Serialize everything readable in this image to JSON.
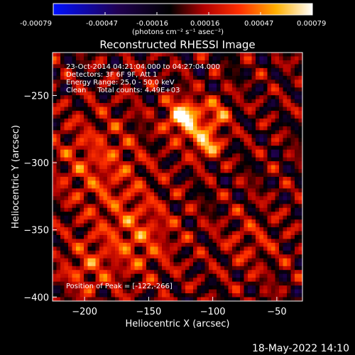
{
  "colorbar": {
    "ticks": [
      "-0.00079",
      "-0.00047",
      "-0.00016",
      "0.00016",
      "0.00047",
      "0.00079"
    ],
    "unit_label": "(photons cm⁻² s⁻¹ asec⁻²)",
    "range": [
      -0.00079,
      0.00079
    ]
  },
  "chart_data": {
    "type": "heatmap",
    "title": "Reconstructed RHESSI Image",
    "xlabel": "Heliocentric X (arcsec)",
    "ylabel": "Heliocentric Y (arcsec)",
    "xlim": [
      -225,
      -30
    ],
    "ylim": [
      -403,
      -218
    ],
    "xticks": [
      -200,
      -150,
      -100,
      -50
    ],
    "yticks": [
      -250,
      -300,
      -350,
      -400
    ],
    "info_lines": [
      "23-Oct-2014 04:21:04.000 to 04:27:04.000",
      "Detectors: 3F 6F 9F, Att 1",
      "Energy Range: 25.0 - 50.0 keV",
      "Clean     Total counts: 4.49E+03"
    ],
    "peak_label": "Position of Peak = [-122,-266]",
    "peak": {
      "x": -122,
      "y": -266
    },
    "colormap": "RHESSI blue-black-red-yellow-white",
    "sources": [
      {
        "x": -122,
        "y": -266,
        "amp": 0.00079,
        "sigma": 9
      },
      {
        "x": -105,
        "y": -285,
        "amp": 0.00058,
        "sigma": 8
      },
      {
        "x": -95,
        "y": -262,
        "amp": 0.0004,
        "sigma": 7
      },
      {
        "x": -190,
        "y": -300,
        "amp": 0.00026,
        "sigma": 25
      },
      {
        "x": -160,
        "y": -355,
        "amp": 0.0003,
        "sigma": 22
      },
      {
        "x": -200,
        "y": -380,
        "amp": 0.00024,
        "sigma": 14
      },
      {
        "x": -70,
        "y": -360,
        "amp": 0.00016,
        "sigma": 18
      }
    ]
  },
  "timestamp": "18-May-2022 14:10"
}
